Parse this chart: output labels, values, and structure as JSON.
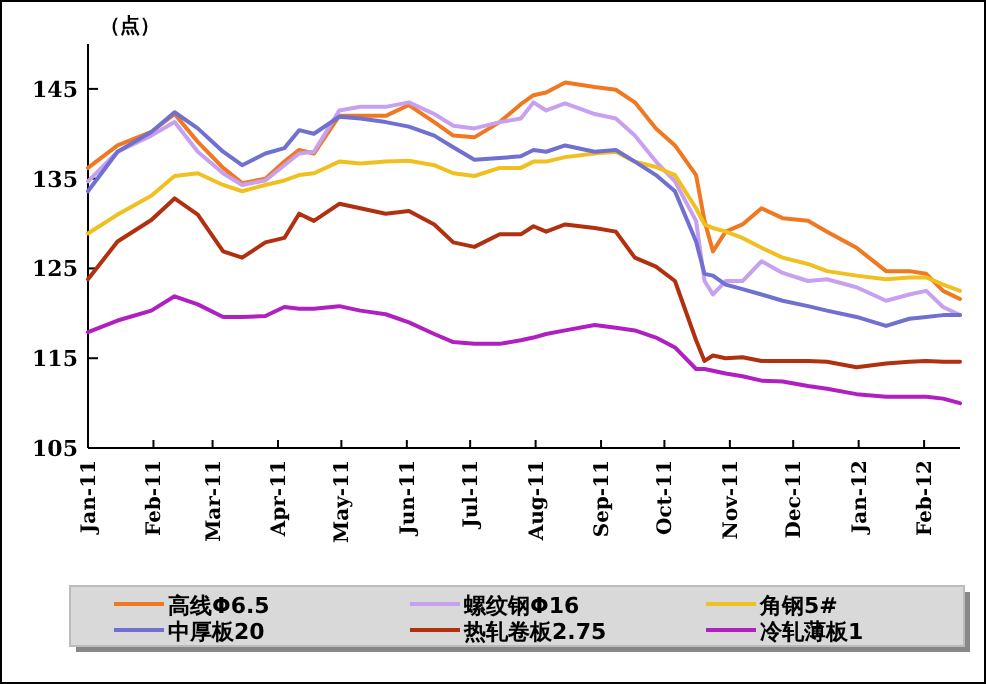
{
  "chart_data": {
    "type": "line",
    "ylabel": "（点）",
    "legend": "bottom",
    "grid": false,
    "marker": "none",
    "line_style": "solid",
    "x": [
      "2011-01-01",
      "2011-01-15",
      "2011-01-31",
      "2011-02-11",
      "2011-02-22",
      "2011-03-06",
      "2011-03-15",
      "2011-03-26",
      "2011-04-04",
      "2011-04-11",
      "2011-04-18",
      "2011-04-30",
      "2011-05-10",
      "2011-05-22",
      "2011-06-02",
      "2011-06-14",
      "2011-06-23",
      "2011-07-03",
      "2011-07-15",
      "2011-07-25",
      "2011-07-31",
      "2011-08-06",
      "2011-08-15",
      "2011-08-29",
      "2011-09-08",
      "2011-09-17",
      "2011-09-27",
      "2011-10-06",
      "2011-10-16",
      "2011-10-20",
      "2011-10-24",
      "2011-10-30",
      "2011-11-07",
      "2011-11-16",
      "2011-11-26",
      "2011-12-08",
      "2011-12-17",
      "2011-12-31",
      "2012-01-14",
      "2012-01-25",
      "2012-02-02",
      "2012-02-10",
      "2012-02-18"
    ],
    "xlim": [
      "2011-01-01",
      "2012-02-18"
    ],
    "xticks": [
      {
        "value": "2011-01-01",
        "label": "Jan-11"
      },
      {
        "value": "2011-02-01",
        "label": "Feb-11"
      },
      {
        "value": "2011-03-01",
        "label": "Mar-11"
      },
      {
        "value": "2011-04-01",
        "label": "Apr-11"
      },
      {
        "value": "2011-05-01",
        "label": "May-11"
      },
      {
        "value": "2011-06-01",
        "label": "Jun-11"
      },
      {
        "value": "2011-07-01",
        "label": "Jul-11"
      },
      {
        "value": "2011-08-01",
        "label": "Aug-11"
      },
      {
        "value": "2011-09-01",
        "label": "Sep-11"
      },
      {
        "value": "2011-10-01",
        "label": "Oct-11"
      },
      {
        "value": "2011-11-01",
        "label": "Nov-11"
      },
      {
        "value": "2011-12-01",
        "label": "Dec-11"
      },
      {
        "value": "2012-01-01",
        "label": "Jan-12"
      },
      {
        "value": "2012-02-01",
        "label": "Feb-12"
      }
    ],
    "ylim": [
      105,
      150
    ],
    "yticks": [
      105,
      115,
      125,
      135,
      145
    ],
    "series": [
      {
        "name": "高线Φ6.5",
        "color": "#f07820",
        "values": [
          136.2,
          138.7,
          140.2,
          142.2,
          139.1,
          136.2,
          134.5,
          135.0,
          136.9,
          138.2,
          137.8,
          142.0,
          142.0,
          142.0,
          143.2,
          141.3,
          139.8,
          139.6,
          141.3,
          143.3,
          144.3,
          144.6,
          145.7,
          145.2,
          144.9,
          143.5,
          140.6,
          138.7,
          135.4,
          130.3,
          126.9,
          129.1,
          129.9,
          131.7,
          130.6,
          130.3,
          129.1,
          127.3,
          124.7,
          124.7,
          124.4,
          122.5,
          121.6
        ]
      },
      {
        "name": "螺纹钢Φ16",
        "color": "#c8a0f0",
        "values": [
          134.7,
          138.0,
          139.8,
          141.3,
          138.0,
          135.6,
          134.3,
          134.8,
          136.5,
          137.8,
          138.0,
          142.6,
          143.0,
          143.0,
          143.5,
          142.2,
          140.9,
          140.6,
          141.3,
          141.7,
          143.5,
          142.6,
          143.4,
          142.2,
          141.7,
          139.8,
          136.9,
          134.7,
          130.3,
          123.6,
          122.1,
          123.6,
          123.6,
          125.8,
          124.5,
          123.6,
          123.8,
          122.9,
          121.4,
          122.1,
          122.5,
          120.7,
          119.8
        ]
      },
      {
        "name": "角钢5#",
        "color": "#f0c020",
        "values": [
          128.9,
          131.0,
          133.1,
          135.3,
          135.6,
          134.3,
          133.6,
          134.3,
          134.8,
          135.4,
          135.6,
          136.9,
          136.7,
          136.9,
          137.0,
          136.5,
          135.6,
          135.3,
          136.2,
          136.2,
          136.9,
          136.9,
          137.4,
          137.8,
          138.0,
          136.9,
          136.3,
          135.4,
          131.7,
          129.9,
          129.5,
          129.1,
          128.4,
          127.3,
          126.2,
          125.5,
          124.7,
          124.2,
          123.8,
          124.0,
          124.0,
          123.2,
          122.5
        ]
      },
      {
        "name": "中厚板20",
        "color": "#7070d0",
        "values": [
          133.6,
          138.0,
          140.2,
          142.4,
          140.6,
          138.0,
          136.5,
          137.8,
          138.4,
          140.4,
          140.0,
          141.9,
          141.7,
          141.3,
          140.8,
          139.8,
          138.5,
          137.1,
          137.3,
          137.5,
          138.2,
          138.0,
          138.7,
          138.0,
          138.2,
          136.9,
          135.4,
          133.6,
          128.0,
          124.4,
          124.2,
          123.2,
          122.7,
          122.1,
          121.4,
          120.8,
          120.3,
          119.6,
          118.6,
          119.4,
          119.6,
          119.8,
          119.8
        ]
      },
      {
        "name": "热轧卷板2.75",
        "color": "#b03010",
        "values": [
          123.8,
          128.0,
          130.4,
          132.8,
          131.0,
          126.9,
          126.2,
          127.9,
          128.4,
          131.1,
          130.3,
          132.2,
          131.7,
          131.1,
          131.4,
          129.9,
          127.9,
          127.4,
          128.8,
          128.8,
          129.7,
          129.1,
          129.9,
          129.5,
          129.1,
          126.2,
          125.2,
          123.6,
          117.0,
          114.7,
          115.3,
          115.0,
          115.1,
          114.7,
          114.7,
          114.7,
          114.6,
          114.0,
          114.4,
          114.6,
          114.7,
          114.6,
          114.6
        ]
      },
      {
        "name": "冷轧薄板1",
        "color": "#b020c0",
        "values": [
          117.9,
          119.2,
          120.3,
          121.9,
          121.0,
          119.6,
          119.6,
          119.7,
          120.7,
          120.5,
          120.5,
          120.8,
          120.3,
          119.9,
          119.0,
          117.7,
          116.8,
          116.6,
          116.6,
          117.0,
          117.3,
          117.7,
          118.1,
          118.7,
          118.4,
          118.1,
          117.3,
          116.2,
          113.8,
          113.8,
          113.6,
          113.3,
          113.0,
          112.5,
          112.4,
          111.9,
          111.6,
          111.0,
          110.7,
          110.7,
          110.7,
          110.5,
          110.0
        ]
      }
    ]
  }
}
